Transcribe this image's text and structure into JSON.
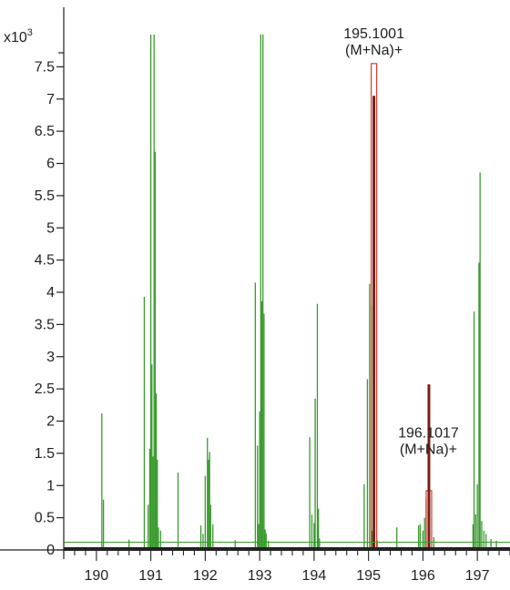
{
  "colors": {
    "spectrum": "#3a9a2e",
    "match": "#d63b2f",
    "axis": "#222222",
    "background": "#ffffff"
  },
  "chart_data": {
    "type": "bar",
    "title": "",
    "xlabel": "",
    "ylabel": "",
    "y_unit_base": "x10",
    "y_unit_exponent": "3",
    "xlim": [
      189.4,
      197.6
    ],
    "ylim": [
      0,
      8.0
    ],
    "x_ticks": [
      190,
      191,
      192,
      193,
      194,
      195,
      196,
      197
    ],
    "x_tick_labels": [
      "190",
      "191",
      "192",
      "193",
      "194",
      "195",
      "196",
      "197"
    ],
    "y_ticks": [
      0,
      0.5,
      1,
      1.5,
      2,
      2.5,
      3,
      3.5,
      4,
      4.5,
      5,
      5.5,
      6,
      6.5,
      7,
      7.5
    ],
    "y_tick_labels": [
      "0",
      "0.5",
      "1",
      "1.5",
      "2",
      "2.5",
      "3",
      "3.5",
      "4",
      "4.5",
      "5",
      "5.5",
      "6",
      "6.5",
      "7",
      "7.5"
    ],
    "grid": false,
    "baseline_intensity": 0.12,
    "series": [
      {
        "role": "spectrum",
        "color": "#3a9a2e",
        "x": [
          190.1,
          190.13,
          190.6,
          190.88,
          190.95,
          190.98,
          191.0,
          191.02,
          191.04,
          191.06,
          191.08,
          191.1,
          191.12,
          191.14,
          191.18,
          191.5,
          191.92,
          191.96,
          192.0,
          192.04,
          192.06,
          192.08,
          192.1,
          192.14,
          192.55,
          192.92,
          192.96,
          192.98,
          193.0,
          193.02,
          193.04,
          193.06,
          193.08,
          193.1,
          193.12,
          193.16,
          193.92,
          193.96,
          194.0,
          194.02,
          194.06,
          194.08,
          194.1,
          194.92,
          194.98,
          195.02,
          195.05,
          195.07,
          195.16,
          195.52,
          195.92,
          195.95,
          196.0,
          196.03,
          196.06,
          196.1,
          196.2,
          196.92,
          196.94,
          196.97,
          197.0,
          197.03,
          197.05,
          197.08,
          197.12,
          197.16,
          197.25,
          197.35
        ],
        "y": [
          2.12,
          0.78,
          0.16,
          3.93,
          0.7,
          1.57,
          8.0,
          2.88,
          1.45,
          8.0,
          6.18,
          2.43,
          1.4,
          0.35,
          0.3,
          1.2,
          0.38,
          0.25,
          1.15,
          1.74,
          1.4,
          1.52,
          0.7,
          0.4,
          0.15,
          4.15,
          1.62,
          0.4,
          2.15,
          8.0,
          3.86,
          8.0,
          3.67,
          0.32,
          0.26,
          0.14,
          1.75,
          0.55,
          0.42,
          2.35,
          3.82,
          0.64,
          0.18,
          1.02,
          2.65,
          4.13,
          3.8,
          0.3,
          0.15,
          0.35,
          0.38,
          0.4,
          0.3,
          0.5,
          0.8,
          1.35,
          0.2,
          0.4,
          3.7,
          0.55,
          1.02,
          4.46,
          5.86,
          0.45,
          0.3,
          0.25,
          0.17,
          0.14
        ]
      },
      {
        "role": "matched-isotope",
        "color": "#d63b2f",
        "x": [
          195.1,
          196.11
        ],
        "y": [
          7.55,
          0.92
        ]
      },
      {
        "role": "observed-peak",
        "color": "#3a9a2e",
        "x": [
          195.1,
          196.11
        ],
        "y": [
          7.05,
          2.57
        ]
      }
    ],
    "annotations": [
      {
        "x": 195.1001,
        "y": 7.55,
        "text": "195.1001",
        "subtext": "(M+Na)+"
      },
      {
        "x": 196.1017,
        "y": 1.35,
        "text": "196.1017",
        "subtext": "(M+Na)+"
      }
    ]
  }
}
